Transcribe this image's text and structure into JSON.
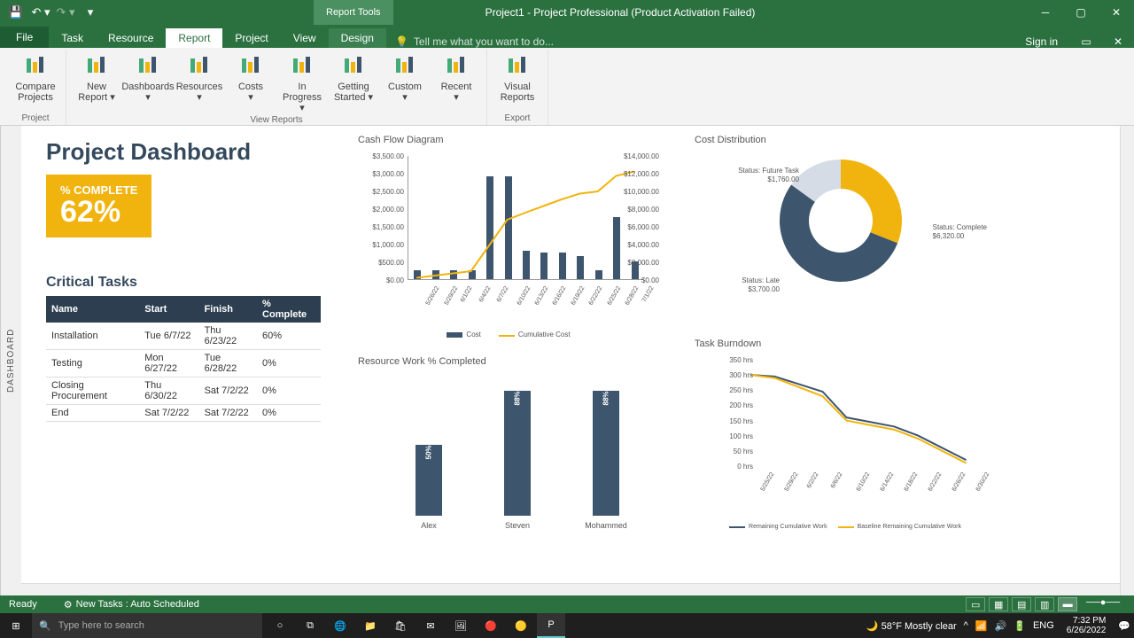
{
  "titlebar": {
    "qat_items": [
      "save",
      "undo",
      "redo",
      "touch"
    ],
    "context_tool": "Report Tools",
    "title": "Project1 - Project Professional (Product Activation Failed)"
  },
  "tabs": {
    "file": "File",
    "items": [
      "Task",
      "Resource",
      "Report",
      "Project",
      "View"
    ],
    "active_index": 2,
    "context": "Design",
    "tellme_placeholder": "Tell me what you want to do...",
    "signin": "Sign in"
  },
  "ribbon": {
    "groups": [
      {
        "buttons": [
          {
            "label": "Compare\nProjects",
            "icon": "compare"
          }
        ],
        "label": "Project"
      },
      {
        "buttons": [
          {
            "label": "New\nReport ▾",
            "icon": "new-report"
          },
          {
            "label": "Dashboards\n▾",
            "icon": "dashboards"
          },
          {
            "label": "Resources\n▾",
            "icon": "resources"
          },
          {
            "label": "Costs\n▾",
            "icon": "costs"
          },
          {
            "label": "In Progress\n▾",
            "icon": "progress"
          },
          {
            "label": "Getting\nStarted ▾",
            "icon": "started"
          },
          {
            "label": "Custom\n▾",
            "icon": "custom"
          },
          {
            "label": "Recent\n▾",
            "icon": "recent"
          }
        ],
        "label": "View Reports"
      },
      {
        "buttons": [
          {
            "label": "Visual\nReports",
            "icon": "visual"
          }
        ],
        "label": "Export"
      }
    ]
  },
  "dashboard": {
    "title": "Project Dashboard",
    "side_tab": "DASHBOARD",
    "kpi": {
      "label": "% COMPLETE",
      "value": "62%",
      "bg": "#f1b40f"
    },
    "critical": {
      "title": "Critical Tasks",
      "columns": [
        "Name",
        "Start",
        "Finish",
        "% Complete"
      ],
      "rows": [
        [
          "Installation",
          "Tue 6/7/22",
          "Thu 6/23/22",
          "60%"
        ],
        [
          "Testing",
          "Mon 6/27/22",
          "Tue 6/28/22",
          "0%"
        ],
        [
          "Closing Procurement",
          "Thu 6/30/22",
          "Sat 7/2/22",
          "0%"
        ],
        [
          "End",
          "Sat 7/2/22",
          "Sat 7/2/22",
          "0%"
        ]
      ]
    },
    "cashflow": {
      "title": "Cash Flow Diagram",
      "type": "bar+line",
      "x": [
        "5/26/22",
        "5/29/22",
        "6/1/22",
        "6/4/22",
        "6/7/22",
        "6/10/22",
        "6/13/22",
        "6/16/22",
        "6/19/22",
        "6/22/22",
        "6/25/22",
        "6/28/22",
        "7/1/22"
      ],
      "bars": [
        250,
        250,
        250,
        250,
        2900,
        2900,
        800,
        750,
        750,
        650,
        250,
        1750,
        500
      ],
      "line": [
        250,
        500,
        750,
        1000,
        3900,
        6800,
        7600,
        8350,
        9100,
        9750,
        10000,
        11750,
        12250
      ],
      "y1_max": 3500,
      "y1_step": 500,
      "y2_max": 14000,
      "y2_step": 2000,
      "bar_color": "#3d556d",
      "line_color": "#f1b40f",
      "legend": [
        "Cost",
        "Cumulative Cost"
      ]
    },
    "costdist": {
      "title": "Cost Distribution",
      "type": "donut",
      "slices": [
        {
          "label": "Status: Late",
          "value": "$3,700.00",
          "pct": 31,
          "color": "#f1b40f"
        },
        {
          "label": "Status: Complete",
          "value": "$6,320.00",
          "pct": 54,
          "color": "#3d556d"
        },
        {
          "label": "Status: Future Task",
          "value": "$1,760.00",
          "pct": 15,
          "color": "#d6dce5"
        }
      ]
    },
    "resource": {
      "title": "Resource Work % Completed",
      "type": "bar",
      "names": [
        "Alex",
        "Steven",
        "Mohammed"
      ],
      "values": [
        50,
        88,
        88
      ],
      "max": 100,
      "bar_color": "#3d556d"
    },
    "burndown": {
      "title": "Task Burndown",
      "type": "line",
      "x": [
        "5/25/22",
        "5/29/22",
        "6/2/22",
        "6/6/22",
        "6/10/22",
        "6/14/22",
        "6/18/22",
        "6/22/22",
        "6/26/22",
        "6/30/22"
      ],
      "line1": [
        300,
        295,
        270,
        245,
        160,
        145,
        130,
        100,
        60,
        20
      ],
      "line2": [
        300,
        290,
        260,
        230,
        150,
        135,
        120,
        90,
        50,
        10
      ],
      "y_max": 350,
      "y_step": 50,
      "y_unit": "hrs",
      "colors": [
        "#3d556d",
        "#f1b40f"
      ],
      "legend": [
        "Remaining Cumulative Work",
        "Baseline Remaining Cumulative Work"
      ]
    }
  },
  "statusbar": {
    "left": "Ready",
    "mode": "New Tasks : Auto Scheduled"
  },
  "taskbar": {
    "search_placeholder": "Type here to search",
    "weather": "58°F  Mostly clear",
    "lang": "ENG",
    "time": "7:32 PM",
    "date": "6/26/2022"
  },
  "colors": {
    "title": "#34495e",
    "accent": "#f1b40f",
    "darkblue": "#3d556d",
    "green": "#2b7140"
  }
}
